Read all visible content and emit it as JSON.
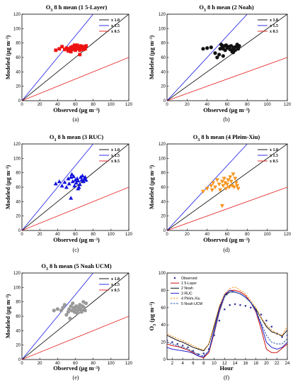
{
  "chart_data": [
    {
      "id": "a",
      "type": "scatter",
      "panel_label": "(a)",
      "title_html": "O<tspan baseline-shift=\"sub\" font-size=\"6\">3</tspan> 8 h mean (1 5-Layer)",
      "xlabel": "Observed",
      "ylabel": "Modeled",
      "xlim": [
        0,
        120
      ],
      "ylim": [
        0,
        120
      ],
      "xticks": [
        0,
        20,
        40,
        60,
        80,
        100,
        120
      ],
      "yticks": [
        0,
        20,
        40,
        60,
        80,
        100,
        120
      ],
      "legend": [
        "x 1.0",
        "x 1.5",
        "x 0.5"
      ],
      "marker": "square",
      "color": "#ee1111",
      "points": [
        [
          38,
          70
        ],
        [
          42,
          72
        ],
        [
          45,
          75
        ],
        [
          48,
          71
        ],
        [
          50,
          73
        ],
        [
          52,
          69
        ],
        [
          53,
          72
        ],
        [
          55,
          74
        ],
        [
          56,
          71
        ],
        [
          57,
          75
        ],
        [
          58,
          72
        ],
        [
          60,
          70
        ],
        [
          61,
          74
        ],
        [
          62,
          77
        ],
        [
          63,
          72
        ],
        [
          64,
          74
        ],
        [
          65,
          70
        ],
        [
          66,
          76
        ],
        [
          67,
          73
        ],
        [
          68,
          75
        ],
        [
          69,
          71
        ],
        [
          70,
          74
        ],
        [
          71,
          72
        ],
        [
          72,
          76
        ],
        [
          65,
          64
        ],
        [
          55,
          68
        ],
        [
          59,
          77
        ]
      ]
    },
    {
      "id": "b",
      "type": "scatter",
      "panel_label": "(b)",
      "title_html": "O<tspan baseline-shift=\"sub\" font-size=\"6\">3</tspan> 8 h mean (2 Noah)",
      "xlabel": "Observed",
      "ylabel": "Modeled",
      "xlim": [
        0,
        120
      ],
      "ylim": [
        0,
        120
      ],
      "xticks": [
        0,
        20,
        40,
        60,
        80,
        100,
        120
      ],
      "yticks": [
        0,
        20,
        40,
        60,
        80,
        100,
        120
      ],
      "legend": [
        "x 1.0",
        "x 1.5",
        "x 0.5"
      ],
      "marker": "circle",
      "color": "#111111",
      "points": [
        [
          36,
          72
        ],
        [
          40,
          73
        ],
        [
          44,
          74
        ],
        [
          48,
          66
        ],
        [
          50,
          60
        ],
        [
          52,
          64
        ],
        [
          53,
          72
        ],
        [
          54,
          78
        ],
        [
          55,
          74
        ],
        [
          56,
          72
        ],
        [
          57,
          76
        ],
        [
          58,
          70
        ],
        [
          59,
          77
        ],
        [
          60,
          74
        ],
        [
          61,
          73
        ],
        [
          62,
          75
        ],
        [
          63,
          71
        ],
        [
          64,
          76
        ],
        [
          65,
          68
        ],
        [
          66,
          72
        ],
        [
          67,
          74
        ],
        [
          68,
          70
        ],
        [
          69,
          75
        ],
        [
          70,
          78
        ],
        [
          71,
          72
        ],
        [
          72,
          76
        ],
        [
          56,
          62
        ],
        [
          66,
          67
        ]
      ]
    },
    {
      "id": "c",
      "type": "scatter",
      "panel_label": "(c)",
      "title_html": "O<tspan baseline-shift=\"sub\" font-size=\"6\">3</tspan> 8 h mean (3 RUC)",
      "xlabel": "Observed",
      "ylabel": "Modeled",
      "xlim": [
        0,
        120
      ],
      "ylim": [
        0,
        120
      ],
      "xticks": [
        0,
        20,
        40,
        60,
        80,
        100,
        120
      ],
      "yticks": [
        0,
        20,
        40,
        60,
        80,
        100,
        120
      ],
      "legend": [
        "x 1.0",
        "x 1.5",
        "x 0.5"
      ],
      "marker": "triangle-up",
      "color": "#1111dd",
      "points": [
        [
          38,
          65
        ],
        [
          42,
          68
        ],
        [
          45,
          62
        ],
        [
          48,
          67
        ],
        [
          50,
          60
        ],
        [
          52,
          72
        ],
        [
          53,
          65
        ],
        [
          55,
          74
        ],
        [
          56,
          78
        ],
        [
          57,
          68
        ],
        [
          58,
          75
        ],
        [
          59,
          62
        ],
        [
          60,
          70
        ],
        [
          61,
          66
        ],
        [
          62,
          72
        ],
        [
          63,
          69
        ],
        [
          64,
          60
        ],
        [
          65,
          64
        ],
        [
          66,
          74
        ],
        [
          67,
          70
        ],
        [
          68,
          76
        ],
        [
          69,
          68
        ],
        [
          70,
          72
        ],
        [
          71,
          74
        ],
        [
          55,
          45
        ],
        [
          63,
          58
        ],
        [
          72,
          70
        ]
      ]
    },
    {
      "id": "d",
      "type": "scatter",
      "panel_label": "(d)",
      "title_html": "O<tspan baseline-shift=\"sub\" font-size=\"6\">3</tspan> 8 h mean (4 Pleim-Xiu)",
      "xlabel": "Observed",
      "ylabel": "Modeled",
      "xlim": [
        0,
        120
      ],
      "ylim": [
        0,
        120
      ],
      "xticks": [
        0,
        20,
        40,
        60,
        80,
        100,
        120
      ],
      "yticks": [
        0,
        20,
        40,
        60,
        80,
        100,
        120
      ],
      "legend": [
        "x 1.0",
        "x 1.5",
        "x 0.5"
      ],
      "marker": "triangle-down",
      "color": "#f7941d",
      "points": [
        [
          36,
          54
        ],
        [
          40,
          58
        ],
        [
          44,
          62
        ],
        [
          46,
          66
        ],
        [
          48,
          60
        ],
        [
          50,
          70
        ],
        [
          52,
          64
        ],
        [
          53,
          56
        ],
        [
          55,
          68
        ],
        [
          56,
          62
        ],
        [
          57,
          72
        ],
        [
          58,
          66
        ],
        [
          59,
          58
        ],
        [
          60,
          64
        ],
        [
          61,
          70
        ],
        [
          62,
          60
        ],
        [
          63,
          74
        ],
        [
          64,
          68
        ],
        [
          65,
          62
        ],
        [
          66,
          78
        ],
        [
          67,
          60
        ],
        [
          68,
          72
        ],
        [
          69,
          66
        ],
        [
          70,
          62
        ],
        [
          71,
          58
        ],
        [
          55,
          34
        ],
        [
          45,
          56
        ]
      ]
    },
    {
      "id": "e",
      "type": "scatter",
      "panel_label": "(e)",
      "title_html": "O<tspan baseline-shift=\"sub\" font-size=\"6\">3</tspan> 8 h mean (5 Noah UCM)",
      "xlabel": "Observed",
      "ylabel": "Modeled",
      "xlim": [
        0,
        120
      ],
      "ylim": [
        0,
        120
      ],
      "xticks": [
        0,
        20,
        40,
        60,
        80,
        100,
        120
      ],
      "yticks": [
        0,
        20,
        40,
        60,
        80,
        100,
        120
      ],
      "legend": [
        "x 1.0",
        "x 1.5",
        "x 0.5"
      ],
      "marker": "circle",
      "color": "#999999",
      "points": [
        [
          36,
          68
        ],
        [
          40,
          70
        ],
        [
          44,
          68
        ],
        [
          46,
          72
        ],
        [
          48,
          76
        ],
        [
          50,
          62
        ],
        [
          52,
          66
        ],
        [
          53,
          70
        ],
        [
          55,
          74
        ],
        [
          56,
          68
        ],
        [
          57,
          78
        ],
        [
          58,
          72
        ],
        [
          59,
          66
        ],
        [
          60,
          70
        ],
        [
          61,
          74
        ],
        [
          62,
          64
        ],
        [
          63,
          68
        ],
        [
          64,
          72
        ],
        [
          65,
          76
        ],
        [
          66,
          70
        ],
        [
          67,
          66
        ],
        [
          68,
          74
        ],
        [
          69,
          80
        ],
        [
          70,
          72
        ],
        [
          71,
          68
        ],
        [
          54,
          57
        ],
        [
          72,
          78
        ]
      ]
    },
    {
      "id": "f",
      "type": "line",
      "panel_label": "(f)",
      "xlabel": "Hour",
      "ylabel_html": "O<tspan baseline-shift=\"sub\" font-size=\"6\">3</tspan> (µg m<tspan baseline-shift=\"super\" font-size=\"5\">−3</tspan>)",
      "xlim": [
        1,
        24
      ],
      "ylim": [
        0,
        100
      ],
      "xticks": [
        2,
        4,
        6,
        8,
        10,
        12,
        14,
        16,
        18,
        20,
        22,
        24
      ],
      "yticks": [
        0,
        20,
        40,
        60,
        80,
        100
      ],
      "x": [
        1,
        2,
        3,
        4,
        5,
        6,
        7,
        8,
        9,
        10,
        11,
        12,
        13,
        14,
        15,
        16,
        17,
        18,
        19,
        20,
        21,
        22,
        23,
        24
      ],
      "series": [
        {
          "name": "Observed",
          "style": "dots",
          "color": "#3a3a9a",
          "values": [
            22,
            20,
            18,
            16,
            14,
            10,
            6,
            7,
            12,
            28,
            45,
            58,
            63,
            64,
            63,
            62,
            60,
            57,
            52,
            45,
            38,
            30,
            26,
            28
          ]
        },
        {
          "name": "1 5-Layer",
          "style": "solid",
          "color": "#cc1111",
          "values": [
            18,
            16,
            15,
            13,
            11,
            8,
            4,
            2,
            8,
            30,
            55,
            74,
            80,
            80,
            78,
            74,
            66,
            55,
            35,
            12,
            8,
            8,
            13,
            18
          ]
        },
        {
          "name": "2 Noah",
          "style": "solid",
          "color": "#111111",
          "values": [
            28,
            25,
            22,
            20,
            17,
            14,
            12,
            10,
            18,
            38,
            60,
            74,
            78,
            78,
            76,
            72,
            66,
            58,
            48,
            38,
            32,
            30,
            27,
            34
          ]
        },
        {
          "name": "3 RUC",
          "style": "solid",
          "color": "#2222cc",
          "values": [
            14,
            12,
            11,
            10,
            9,
            7,
            4,
            3,
            10,
            34,
            58,
            75,
            80,
            78,
            76,
            72,
            66,
            56,
            40,
            20,
            14,
            12,
            14,
            20
          ]
        },
        {
          "name": "4 Pleim-Xiu",
          "style": "dashed",
          "color": "#f7941d",
          "values": [
            30,
            27,
            24,
            22,
            19,
            16,
            13,
            11,
            18,
            40,
            62,
            76,
            82,
            84,
            80,
            76,
            68,
            60,
            48,
            40,
            34,
            30,
            28,
            38
          ]
        },
        {
          "name": "5 Noah UCM",
          "style": "dashed",
          "color": "#2255aa",
          "values": [
            20,
            18,
            16,
            14,
            12,
            9,
            6,
            4,
            10,
            30,
            55,
            72,
            78,
            78,
            76,
            72,
            66,
            57,
            42,
            28,
            20,
            18,
            18,
            24
          ]
        }
      ]
    }
  ]
}
